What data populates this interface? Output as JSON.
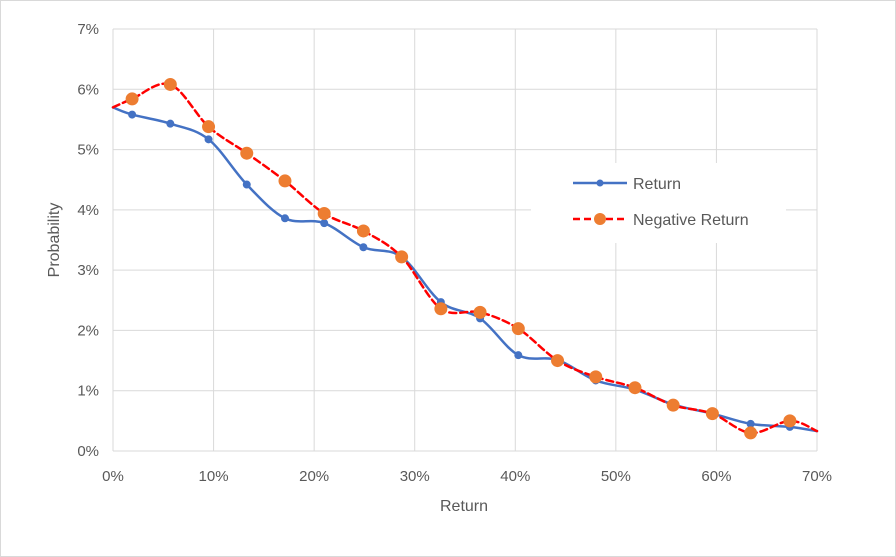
{
  "chart_data": {
    "type": "line",
    "title": "",
    "xlabel": "Return",
    "ylabel": "Probability",
    "xlim": [
      0,
      0.7
    ],
    "ylim": [
      0,
      0.07
    ],
    "x_ticks": [
      0,
      0.1,
      0.2,
      0.3,
      0.4,
      0.5,
      0.6,
      0.7
    ],
    "x_tick_labels": [
      "0%",
      "10%",
      "20%",
      "30%",
      "40%",
      "50%",
      "60%",
      "70%"
    ],
    "y_ticks": [
      0,
      0.01,
      0.02,
      0.03,
      0.04,
      0.05,
      0.06,
      0.07
    ],
    "y_tick_labels": [
      "0%",
      "1%",
      "2%",
      "3%",
      "4%",
      "5%",
      "6%",
      "7%"
    ],
    "grid": true,
    "legend_position": "right",
    "series": [
      {
        "name": "Return",
        "color": "#4472C4",
        "line_style": "solid",
        "marker": "small-circle",
        "points": [
          {
            "x": 0.0,
            "y": 0.057,
            "marker": false
          },
          {
            "x": 0.019,
            "y": 0.0558
          },
          {
            "x": 0.057,
            "y": 0.0543
          },
          {
            "x": 0.095,
            "y": 0.0517
          },
          {
            "x": 0.133,
            "y": 0.0442
          },
          {
            "x": 0.171,
            "y": 0.0386
          },
          {
            "x": 0.21,
            "y": 0.0378
          },
          {
            "x": 0.249,
            "y": 0.0338
          },
          {
            "x": 0.287,
            "y": 0.0322
          },
          {
            "x": 0.326,
            "y": 0.0247
          },
          {
            "x": 0.365,
            "y": 0.022
          },
          {
            "x": 0.403,
            "y": 0.0159
          },
          {
            "x": 0.442,
            "y": 0.0151
          },
          {
            "x": 0.48,
            "y": 0.0117
          },
          {
            "x": 0.519,
            "y": 0.0102
          },
          {
            "x": 0.557,
            "y": 0.0077
          },
          {
            "x": 0.596,
            "y": 0.0062
          },
          {
            "x": 0.634,
            "y": 0.0045
          },
          {
            "x": 0.673,
            "y": 0.004
          },
          {
            "x": 0.7,
            "y": 0.0033,
            "marker": false
          }
        ]
      },
      {
        "name": "Negative Return",
        "color": "#FF0000",
        "marker_color": "#ED7D31",
        "line_style": "dashed",
        "marker": "large-circle",
        "points": [
          {
            "x": 0.0,
            "y": 0.057,
            "marker": false
          },
          {
            "x": 0.019,
            "y": 0.0584
          },
          {
            "x": 0.057,
            "y": 0.0608
          },
          {
            "x": 0.095,
            "y": 0.0538
          },
          {
            "x": 0.133,
            "y": 0.0494
          },
          {
            "x": 0.171,
            "y": 0.0448
          },
          {
            "x": 0.21,
            "y": 0.0394
          },
          {
            "x": 0.249,
            "y": 0.0365
          },
          {
            "x": 0.287,
            "y": 0.0322
          },
          {
            "x": 0.326,
            "y": 0.0236
          },
          {
            "x": 0.365,
            "y": 0.023
          },
          {
            "x": 0.403,
            "y": 0.0203
          },
          {
            "x": 0.442,
            "y": 0.015
          },
          {
            "x": 0.48,
            "y": 0.0123
          },
          {
            "x": 0.519,
            "y": 0.0105
          },
          {
            "x": 0.557,
            "y": 0.0076
          },
          {
            "x": 0.596,
            "y": 0.0062
          },
          {
            "x": 0.634,
            "y": 0.003
          },
          {
            "x": 0.673,
            "y": 0.005
          },
          {
            "x": 0.7,
            "y": 0.0033,
            "marker": false
          }
        ]
      }
    ]
  }
}
